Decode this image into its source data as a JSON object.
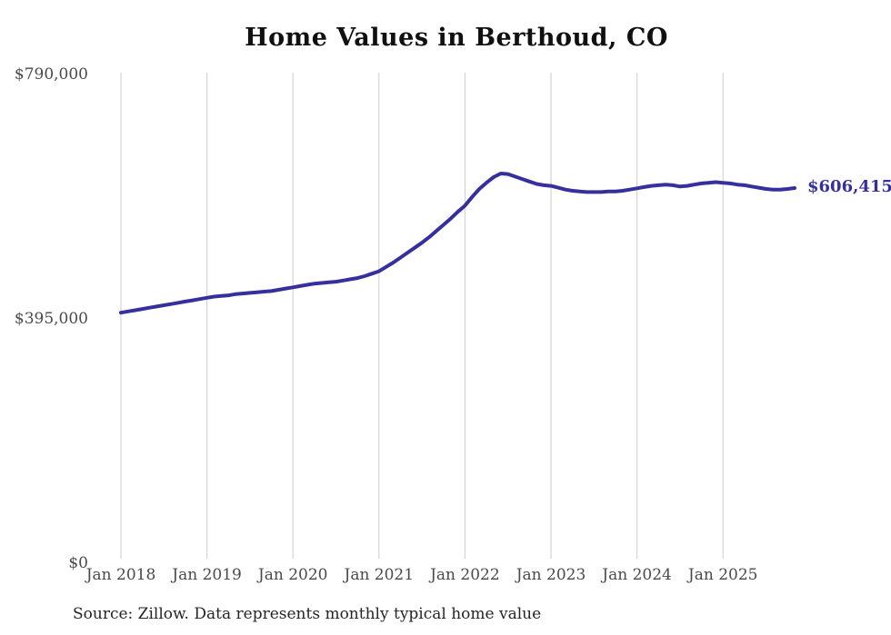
{
  "page": {
    "background_color": "#ffffff"
  },
  "chart_data": {
    "type": "line",
    "title": "Home Values in Berthoud, CO",
    "source_note": "Source: Zillow. Data represents monthly typical home value",
    "grid": "vertical-only",
    "grid_color": "#cdcdcd",
    "tick_label_color": "#4a4a4a",
    "title_color": "#101010",
    "legend_position": "none",
    "ylim": [
      0,
      790000
    ],
    "x_tick_labels": [
      "Jan 2018",
      "Jan 2019",
      "Jan 2020",
      "Jan 2021",
      "Jan 2022",
      "Jan 2023",
      "Jan 2024",
      "Jan 2025"
    ],
    "y_ticks": [
      {
        "label": "$790,000",
        "value": 790000
      },
      {
        "label": "$395,000",
        "value": 395000
      },
      {
        "label": "$0",
        "value": 0
      }
    ],
    "series": [
      {
        "name": "Monthly typical home value",
        "color": "#36309e",
        "start_month": "2018-01",
        "frequency": "monthly",
        "end_value_label": "$606,415",
        "end_value": 606415,
        "values": [
          405000,
          407000,
          409000,
          411000,
          413000,
          415000,
          417000,
          419000,
          421000,
          423000,
          425000,
          427000,
          429000,
          431000,
          432000,
          433000,
          435000,
          436000,
          437000,
          438000,
          439000,
          440000,
          442000,
          444000,
          446000,
          448000,
          450000,
          452000,
          453000,
          454000,
          455000,
          457000,
          459000,
          461000,
          464000,
          468000,
          472000,
          479000,
          486000,
          494000,
          502000,
          510000,
          518000,
          527000,
          537000,
          547000,
          557000,
          568000,
          578000,
          592000,
          605000,
          615000,
          624000,
          630000,
          629000,
          625000,
          621000,
          617000,
          613000,
          611000,
          610000,
          607000,
          604000,
          602000,
          601000,
          600000,
          600000,
          600000,
          601000,
          601000,
          602000,
          604000,
          606000,
          608000,
          610000,
          611000,
          612000,
          611000,
          609000,
          610000,
          612000,
          614000,
          615000,
          616000,
          615000,
          614000,
          612000,
          611000,
          609000,
          607000,
          605000,
          604000,
          604000,
          605000,
          606415
        ]
      }
    ]
  }
}
